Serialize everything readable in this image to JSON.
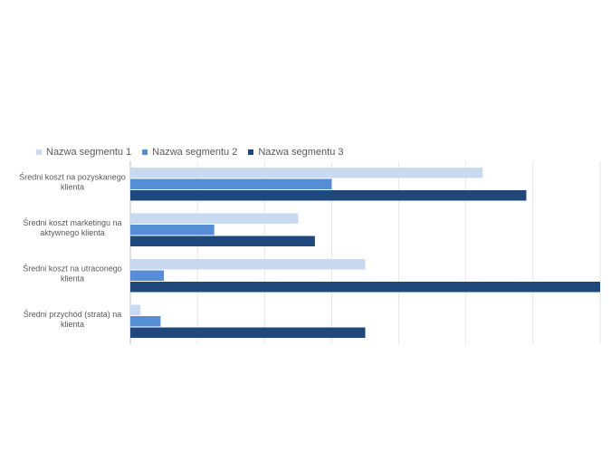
{
  "chart_data": {
    "type": "bar",
    "orientation": "horizontal",
    "title": "",
    "xlabel": "",
    "ylabel": "",
    "categories": [
      "Średni koszt na pozyskanego klienta",
      "Średni koszt marketingu na aktywnego klienta",
      "Średni koszt na utraconego klienta",
      "Średni przychód (strata) na klienta"
    ],
    "category_lines": [
      [
        "Średni koszt na pozyskanego",
        "klienta"
      ],
      [
        "Średni koszt marketingu na",
        "aktywnego klienta"
      ],
      [
        "Średni koszt na utraconego",
        "klienta"
      ],
      [
        "Średni przychód (strata) na",
        "klienta"
      ]
    ],
    "series": [
      {
        "name": "Nazwa segmentu 1",
        "color": "#c9d9f0",
        "values": [
          5.25,
          2.5,
          3.5,
          0.15
        ]
      },
      {
        "name": "Nazwa segmentu 2",
        "color": "#558ed5",
        "values": [
          3.0,
          1.25,
          0.5,
          0.45
        ]
      },
      {
        "name": "Nazwa segmentu 3",
        "color": "#1f497d",
        "values": [
          5.9,
          2.75,
          7.0,
          3.5
        ]
      }
    ],
    "xlim": [
      0,
      7
    ],
    "x_tick_step": 1,
    "tick_labels_visible": false,
    "grid": true,
    "legend": "top-left",
    "grid_color": "#e6e6e6",
    "axis_color": "#bfbfbf"
  }
}
